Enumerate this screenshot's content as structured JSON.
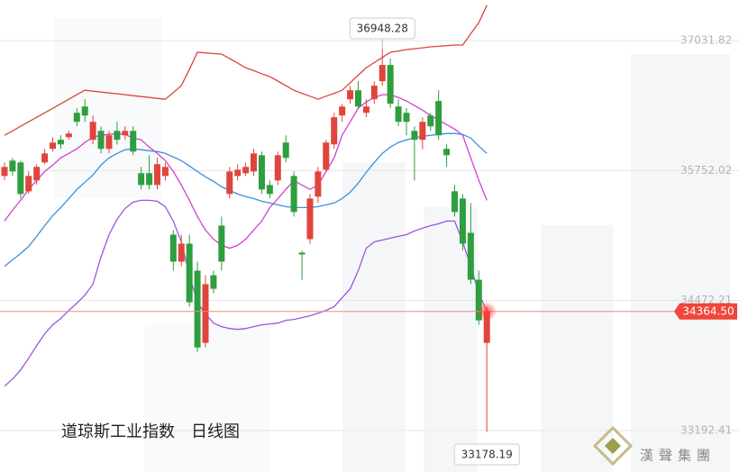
{
  "chart_data": {
    "type": "candlestick",
    "title": "道琼斯工业指数　日线图",
    "ylim": [
      32783.6,
      37431.7
    ],
    "yticks": [
      37031.82,
      35752.02,
      34472.21,
      33192.41
    ],
    "grid": true,
    "up_color": "#e0453c",
    "down_color": "#2e9e3e",
    "candles": [
      [
        35699,
        35832,
        35655,
        35788
      ],
      [
        35850,
        35877,
        35699,
        35743
      ],
      [
        35832,
        35850,
        35477,
        35521
      ],
      [
        35548,
        35743,
        35521,
        35699
      ],
      [
        35655,
        35815,
        35610,
        35788
      ],
      [
        35832,
        35966,
        35815,
        35921
      ],
      [
        35966,
        36081,
        35939,
        36028
      ],
      [
        36055,
        36099,
        35966,
        36010
      ],
      [
        36081,
        36143,
        36055,
        36117
      ],
      [
        36321,
        36366,
        36188,
        36232
      ],
      [
        36383,
        36454,
        36232,
        36294
      ],
      [
        36055,
        36294,
        36010,
        36232
      ],
      [
        36143,
        36188,
        35921,
        35966
      ],
      [
        35966,
        36143,
        35921,
        36099
      ],
      [
        36143,
        36232,
        36010,
        36055
      ],
      [
        36099,
        36188,
        36055,
        36143
      ],
      [
        36143,
        36188,
        35903,
        35939
      ],
      [
        35726,
        35788,
        35566,
        35610
      ],
      [
        35726,
        35903,
        35566,
        35610
      ],
      [
        35610,
        35877,
        35566,
        35815
      ],
      [
        35699,
        35832,
        35655,
        35788
      ],
      [
        35121,
        35166,
        34766,
        34855
      ],
      [
        34855,
        35121,
        34810,
        35032
      ],
      [
        35032,
        35121,
        34410,
        34455
      ],
      [
        34766,
        34855,
        33966,
        34010
      ],
      [
        34055,
        34721,
        34010,
        34633
      ],
      [
        34721,
        34766,
        34544,
        34588
      ],
      [
        35210,
        35299,
        34766,
        34855
      ],
      [
        35521,
        35788,
        35477,
        35743
      ],
      [
        35699,
        35815,
        35655,
        35761
      ],
      [
        35726,
        35832,
        35699,
        35788
      ],
      [
        35743,
        35966,
        35699,
        35921
      ],
      [
        35903,
        35939,
        35521,
        35566
      ],
      [
        35610,
        35655,
        35477,
        35521
      ],
      [
        35655,
        35939,
        35610,
        35903
      ],
      [
        36028,
        36099,
        35832,
        35877
      ],
      [
        35699,
        35743,
        35299,
        35344
      ],
      [
        34944,
        34961,
        34677,
        34926
      ],
      [
        35077,
        35521,
        35032,
        35477
      ],
      [
        35495,
        35788,
        35432,
        35743
      ],
      [
        35761,
        36055,
        35743,
        36028
      ],
      [
        36010,
        36321,
        35966,
        36277
      ],
      [
        36294,
        36410,
        36232,
        36383
      ],
      [
        36454,
        36588,
        36410,
        36543
      ],
      [
        36543,
        36632,
        36366,
        36383
      ],
      [
        36321,
        36454,
        36277,
        36383
      ],
      [
        36454,
        36632,
        36410,
        36588
      ],
      [
        36632,
        36948.28,
        36588,
        36792
      ],
      [
        36792,
        36855,
        36366,
        36410
      ],
      [
        36383,
        36454,
        36188,
        36232
      ],
      [
        36321,
        36366,
        36099,
        36232
      ],
      [
        36143,
        36188,
        35655,
        36055
      ],
      [
        36055,
        36277,
        35961,
        36232
      ],
      [
        36294,
        36321,
        36143,
        36188
      ],
      [
        36437,
        36543,
        36055,
        36099
      ],
      [
        35966,
        36010,
        35788,
        35903
      ],
      [
        35548,
        35610,
        35299,
        35344
      ],
      [
        35477,
        35521,
        34966,
        35032
      ],
      [
        35139,
        35432,
        34633,
        34677
      ],
      [
        34677,
        34766,
        34232,
        34277
      ],
      [
        34055,
        34410,
        33178.19,
        34364.5
      ]
    ],
    "lines": [
      {
        "color": "#d9463a",
        "values": [
          36099,
          36143,
          36188,
          36232,
          36277,
          36321,
          36365,
          36410,
          36454,
          36499,
          36543,
          36534,
          36525,
          36516,
          36508,
          36499,
          36490,
          36481,
          36472,
          36463,
          36454,
          36520,
          36588,
          36750,
          36917,
          36910,
          36905,
          36899,
          36855,
          36810,
          36765,
          36736,
          36706,
          36677,
          36633,
          36588,
          36543,
          36513,
          36484,
          36454,
          36484,
          36513,
          36543,
          36617,
          36691,
          36765,
          36815,
          36866,
          36917,
          36930,
          36943,
          36952,
          36961,
          36970,
          36976,
          36982,
          36988,
          36988,
          37100,
          37210,
          37380
        ]
      },
      {
        "color": "#d63fd0",
        "values": [
          35255,
          35361,
          35459,
          35566,
          35655,
          35743,
          35806,
          35877,
          35921,
          35966,
          36028,
          36081,
          36099,
          36108,
          36117,
          36108,
          36072,
          36055,
          35983,
          35921,
          35850,
          35743,
          35610,
          35459,
          35299,
          35166,
          35077,
          35015,
          34988,
          35015,
          35077,
          35166,
          35255,
          35388,
          35477,
          35566,
          35655,
          35610,
          35566,
          35610,
          35743,
          35877,
          36099,
          36232,
          36366,
          36428,
          36472,
          36499,
          36499,
          36472,
          36437,
          36392,
          36348,
          36294,
          36250,
          36205,
          36161,
          36099,
          35877,
          35655,
          35459
        ]
      },
      {
        "color": "#3a8fe0",
        "values": [
          34810,
          34873,
          34935,
          35006,
          35104,
          35210,
          35308,
          35388,
          35477,
          35566,
          35637,
          35708,
          35806,
          35877,
          35921,
          35957,
          35966,
          35957,
          35948,
          35939,
          35921,
          35886,
          35850,
          35797,
          35743,
          35690,
          35646,
          35592,
          35557,
          35521,
          35495,
          35477,
          35450,
          35432,
          35415,
          35397,
          35388,
          35388,
          35388,
          35397,
          35415,
          35432,
          35477,
          35539,
          35628,
          35735,
          35832,
          35921,
          35983,
          36028,
          36055,
          36072,
          36090,
          36099,
          36108,
          36117,
          36117,
          36108,
          36072,
          35992,
          35921
        ]
      },
      {
        "color": "#9b55e0",
        "values": [
          33628,
          33699,
          33788,
          33904,
          34028,
          34144,
          34233,
          34295,
          34375,
          34446,
          34526,
          34633,
          34899,
          35121,
          35272,
          35379,
          35441,
          35459,
          35459,
          35450,
          35397,
          35255,
          35050,
          34721,
          34455,
          34339,
          34250,
          34215,
          34197,
          34188,
          34197,
          34215,
          34233,
          34242,
          34250,
          34277,
          34286,
          34304,
          34322,
          34348,
          34375,
          34410,
          34499,
          34588,
          34766,
          34988,
          35050,
          35068,
          35086,
          35104,
          35121,
          35157,
          35184,
          35210,
          35228,
          35255,
          35255,
          35050,
          34810,
          34544,
          34366
        ]
      }
    ],
    "last_price_label": "34364.50",
    "watermark": "漢聲集團"
  }
}
